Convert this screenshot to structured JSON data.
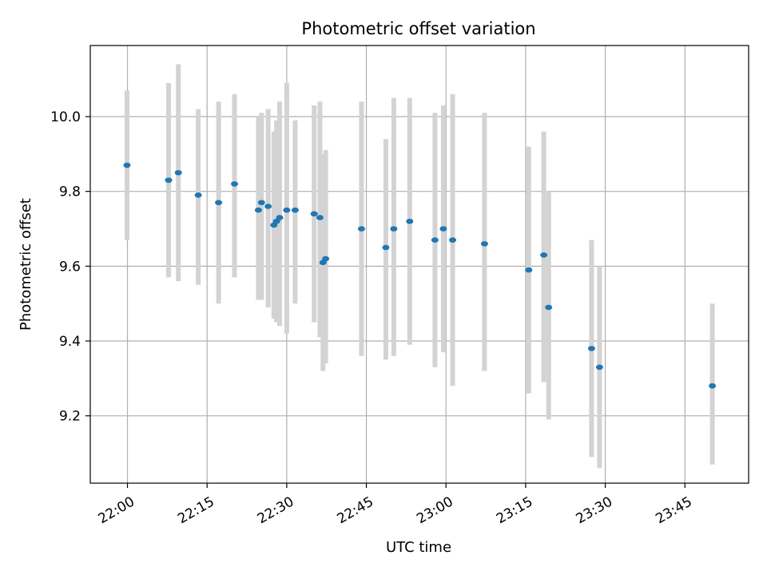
{
  "chart_data": {
    "type": "scatter",
    "title": "Photometric offset variation",
    "xlabel": "UTC time",
    "ylabel": "Photometric offset",
    "x_axis_type": "time",
    "xlim": [
      "21:53",
      "23:57"
    ],
    "ylim": [
      9.02,
      10.19
    ],
    "x_ticks": [
      "22:00",
      "22:15",
      "22:30",
      "22:45",
      "23:00",
      "23:15",
      "23:30",
      "23:45"
    ],
    "y_ticks": [
      "9.2",
      "9.4",
      "9.6",
      "9.8",
      "10.0"
    ],
    "y_tick_values": [
      9.2,
      9.4,
      9.6,
      9.8,
      10.0
    ],
    "grid": true,
    "legend": null,
    "colors": {
      "points": "#1f77b4",
      "error_bars": "#d3d3d3",
      "grid": "#b0b0b0",
      "axes": "#000000"
    },
    "series": [
      {
        "points": [
          {
            "x": "21:59:55",
            "y": 9.87,
            "ylow": 9.67,
            "yhigh": 10.07
          },
          {
            "x": "22:07:45",
            "y": 9.83,
            "ylow": 9.57,
            "yhigh": 10.09
          },
          {
            "x": "22:09:35",
            "y": 9.85,
            "ylow": 9.56,
            "yhigh": 10.14
          },
          {
            "x": "22:13:20",
            "y": 9.79,
            "ylow": 9.55,
            "yhigh": 10.02
          },
          {
            "x": "22:17:10",
            "y": 9.77,
            "ylow": 9.5,
            "yhigh": 10.04
          },
          {
            "x": "22:20:10",
            "y": 9.82,
            "ylow": 9.57,
            "yhigh": 10.06
          },
          {
            "x": "22:24:40",
            "y": 9.75,
            "ylow": 9.51,
            "yhigh": 10.0
          },
          {
            "x": "22:25:15",
            "y": 9.77,
            "ylow": 9.51,
            "yhigh": 10.01
          },
          {
            "x": "22:26:30",
            "y": 9.76,
            "ylow": 9.49,
            "yhigh": 10.02
          },
          {
            "x": "22:27:35",
            "y": 9.71,
            "ylow": 9.46,
            "yhigh": 9.96
          },
          {
            "x": "22:28:05",
            "y": 9.72,
            "ylow": 9.45,
            "yhigh": 9.99
          },
          {
            "x": "22:28:40",
            "y": 9.73,
            "ylow": 9.44,
            "yhigh": 10.04
          },
          {
            "x": "22:30:00",
            "y": 9.75,
            "ylow": 9.42,
            "yhigh": 10.09
          },
          {
            "x": "22:31:35",
            "y": 9.75,
            "ylow": 9.5,
            "yhigh": 9.99
          },
          {
            "x": "22:35:10",
            "y": 9.74,
            "ylow": 9.45,
            "yhigh": 10.03
          },
          {
            "x": "22:36:15",
            "y": 9.73,
            "ylow": 9.41,
            "yhigh": 10.04
          },
          {
            "x": "22:36:50",
            "y": 9.61,
            "ylow": 9.32,
            "yhigh": 9.9
          },
          {
            "x": "22:37:20",
            "y": 9.62,
            "ylow": 9.34,
            "yhigh": 9.91
          },
          {
            "x": "22:44:05",
            "y": 9.7,
            "ylow": 9.36,
            "yhigh": 10.04
          },
          {
            "x": "22:48:40",
            "y": 9.65,
            "ylow": 9.35,
            "yhigh": 9.94
          },
          {
            "x": "22:50:10",
            "y": 9.7,
            "ylow": 9.36,
            "yhigh": 10.05
          },
          {
            "x": "22:53:10",
            "y": 9.72,
            "ylow": 9.39,
            "yhigh": 10.05
          },
          {
            "x": "22:57:55",
            "y": 9.67,
            "ylow": 9.33,
            "yhigh": 10.01
          },
          {
            "x": "22:59:30",
            "y": 9.7,
            "ylow": 9.37,
            "yhigh": 10.03
          },
          {
            "x": "23:01:15",
            "y": 9.67,
            "ylow": 9.28,
            "yhigh": 10.06
          },
          {
            "x": "23:07:15",
            "y": 9.66,
            "ylow": 9.32,
            "yhigh": 10.01
          },
          {
            "x": "23:15:35",
            "y": 9.59,
            "ylow": 9.26,
            "yhigh": 9.92
          },
          {
            "x": "23:18:25",
            "y": 9.63,
            "ylow": 9.29,
            "yhigh": 9.96
          },
          {
            "x": "23:19:20",
            "y": 9.49,
            "ylow": 9.19,
            "yhigh": 9.8
          },
          {
            "x": "23:27:25",
            "y": 9.38,
            "ylow": 9.09,
            "yhigh": 9.67
          },
          {
            "x": "23:28:55",
            "y": 9.33,
            "ylow": 9.06,
            "yhigh": 9.6
          },
          {
            "x": "23:50:10",
            "y": 9.28,
            "ylow": 9.07,
            "yhigh": 9.5
          }
        ]
      }
    ]
  }
}
